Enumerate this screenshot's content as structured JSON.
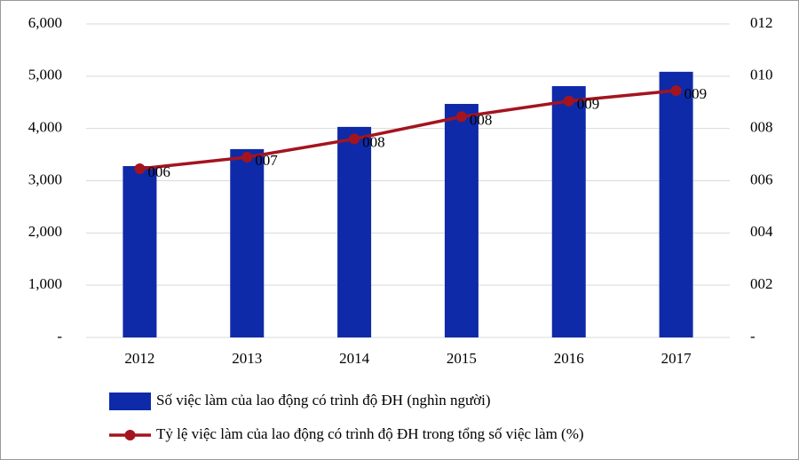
{
  "chart_data": {
    "type": "bar",
    "categories": [
      "2012",
      "2013",
      "2014",
      "2015",
      "2016",
      "2017"
    ],
    "series": [
      {
        "name": "Số việc làm của lao động có trình độ ĐH (nghìn người)",
        "color": "#0f2aa8",
        "values": [
          3280,
          3605,
          4030,
          4470,
          4810,
          5085
        ]
      },
      {
        "name": "Tỷ lệ việc làm của lao động có trình độ ĐH trong tổng số việc làm (%)",
        "color": "#a3141f",
        "type": "line",
        "axis": "y2",
        "values": [
          6.46,
          6.9,
          7.6,
          8.45,
          9.05,
          9.45
        ],
        "value_labels": [
          "006",
          "007",
          "008",
          "008",
          "009",
          "009"
        ]
      }
    ],
    "ylim": [
      0,
      6000
    ],
    "yticks": [
      {
        "value": 0,
        "label": "-"
      },
      {
        "value": 1000,
        "label": "1,000"
      },
      {
        "value": 2000,
        "label": "2,000"
      },
      {
        "value": 3000,
        "label": "3,000"
      },
      {
        "value": 4000,
        "label": "4,000"
      },
      {
        "value": 5000,
        "label": "5,000"
      },
      {
        "value": 6000,
        "label": "6,000"
      }
    ],
    "y2lim": [
      0,
      12
    ],
    "y2ticks": [
      {
        "value": 0,
        "label": "-"
      },
      {
        "value": 2,
        "label": "002"
      },
      {
        "value": 4,
        "label": "004"
      },
      {
        "value": 6,
        "label": "006"
      },
      {
        "value": 8,
        "label": "008"
      },
      {
        "value": 10,
        "label": "010"
      },
      {
        "value": 12,
        "label": "012"
      }
    ],
    "grid": true
  }
}
